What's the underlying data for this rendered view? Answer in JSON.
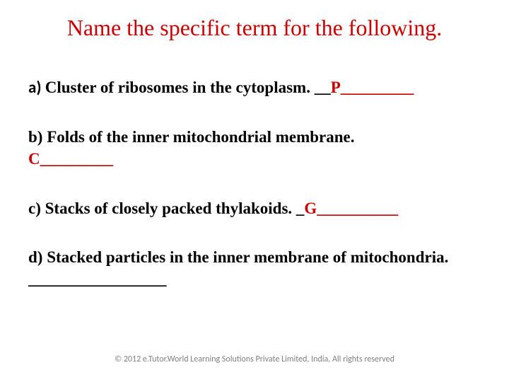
{
  "title_color": "#cc0000",
  "text_color": "#000000",
  "hint_color": "#cc0000",
  "footer_color": "#808080",
  "background_color": "#ffffff",
  "title": "Name the specific term for the following.",
  "questions": {
    "a": {
      "label": "a) ",
      "text": "Cluster of ribosomes in the cytoplasm. __",
      "hint": "P_________"
    },
    "b": {
      "label": "b) ",
      "text": "Folds of the inner mitochondrial membrane. ",
      "hint": "C_________"
    },
    "c": {
      "label": "c) ",
      "text": "Stacks of closely packed thylakoids. _",
      "hint": "G__________"
    },
    "d": {
      "label": "d) ",
      "text": "Stacked particles in the inner membrane of mitochondria. _________________",
      "hint": ""
    }
  },
  "footer": "© 2012 e.Tutor.World Learning Solutions Private Limited, India, All rights reserved"
}
